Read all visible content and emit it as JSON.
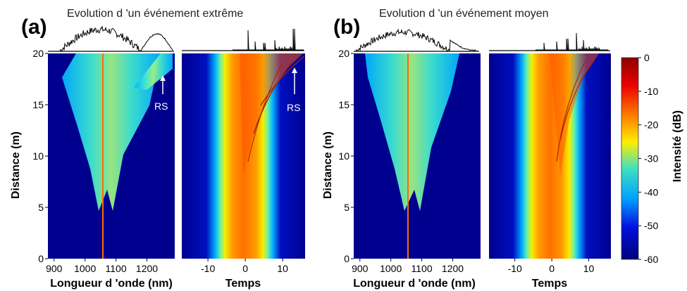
{
  "chart_data": [
    {
      "type": "heatmap",
      "panel": "(a)",
      "title": "Evolution d 'un événement extrême",
      "subplots": [
        {
          "kind": "spectral",
          "xlabel": "Longueur d 'onde (nm)",
          "ylabel": "Distance (m)",
          "xlim": [
            880,
            1290
          ],
          "ylim": [
            0,
            20
          ],
          "xticks": [
            "900",
            "1000",
            "1100",
            "1200"
          ],
          "yticks": [
            "0",
            "5",
            "10",
            "15",
            "20"
          ],
          "annotation": "RS"
        },
        {
          "kind": "temporal",
          "xlabel": "Temps",
          "xlim": [
            -17,
            16
          ],
          "ylim": [
            0,
            20
          ],
          "xticks": [
            "-10",
            "0",
            "10"
          ],
          "annotation": "RS"
        }
      ]
    },
    {
      "type": "heatmap",
      "panel": "(b)",
      "title": "Evolution d 'un événement moyen",
      "subplots": [
        {
          "kind": "spectral",
          "xlabel": "Longueur d 'onde (nm)",
          "ylabel": "Distance (m)",
          "xlim": [
            880,
            1290
          ],
          "ylim": [
            0,
            20
          ],
          "xticks": [
            "900",
            "1000",
            "1100",
            "1200"
          ],
          "yticks": [
            "0",
            "5",
            "10",
            "15",
            "20"
          ]
        },
        {
          "kind": "temporal",
          "xlabel": "Temps",
          "xlim": [
            -17,
            16
          ],
          "ylim": [
            0,
            20
          ],
          "xticks": [
            "-10",
            "0",
            "10"
          ]
        }
      ]
    }
  ],
  "colorbar": {
    "label": "Intensité (dB)",
    "range": [
      -60,
      0
    ],
    "ticks": [
      "0",
      "-10",
      "-20",
      "-30",
      "-40",
      "-50",
      "-60"
    ],
    "colors": [
      "#8b0000",
      "#ff2000",
      "#ff9900",
      "#ffff00",
      "#40e0d0",
      "#00aaff",
      "#0000cc",
      "#00007a"
    ]
  }
}
